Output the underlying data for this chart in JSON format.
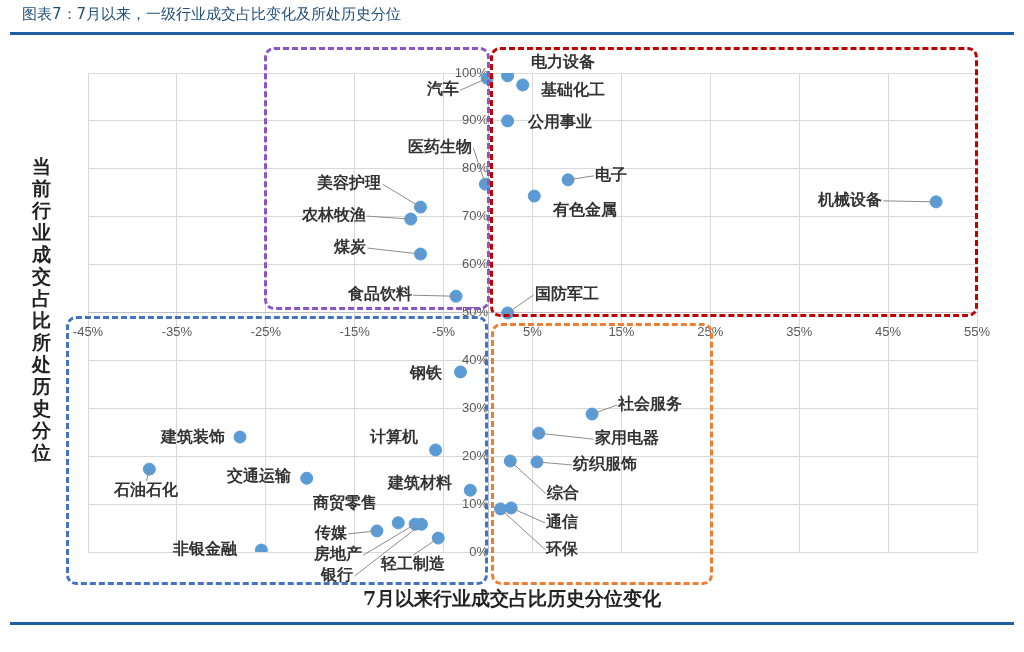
{
  "chart_data": {
    "type": "scatter",
    "title": "图表7：7月以来，一级行业成交占比变化及所处历史分位",
    "xlabel": "7月以来行业成交占比历史分位变化",
    "ylabel": "当前行业成交占比所处历史分位",
    "x": [
      -0.1,
      2.2,
      3.9,
      2.2,
      -0.3,
      9.0,
      5.2,
      50.4,
      -7.6,
      -8.7,
      -7.6,
      -3.6,
      2.2,
      -3.1,
      11.7,
      5.7,
      5.5,
      2.5,
      -27.9,
      -38.1,
      -20.4,
      -5.9,
      -2.0,
      -10.1,
      -12.5,
      -8.2,
      -7.5,
      -5.6,
      -25.5,
      2.6,
      1.4
    ],
    "values": [
      98.9,
      99.4,
      97.5,
      90.0,
      76.8,
      77.7,
      74.3,
      73.1,
      72.0,
      69.5,
      62.2,
      53.4,
      49.9,
      37.6,
      28.8,
      24.8,
      18.8,
      19.0,
      24.0,
      17.3,
      15.4,
      21.3,
      12.9,
      6.1,
      4.4,
      5.8,
      5.8,
      2.9,
      0.4,
      9.2,
      9.0
    ],
    "value_labels": [
      "汽车",
      "电力设备",
      "基础化工",
      "公用事业",
      "医药生物",
      "电子",
      "有色金属",
      "机械设备",
      "美容护理",
      "农林牧渔",
      "煤炭",
      "食品饮料",
      "国防军工",
      "钢铁",
      "社会服务",
      "家用电器",
      "纺织服饰",
      "综合",
      "建筑装饰",
      "石油石化",
      "交通运输",
      "计算机",
      "建筑材料",
      "商贸零售",
      "传媒",
      "房地产",
      "银行",
      "轻工制造",
      "非银金融",
      "通信",
      "环保"
    ],
    "color": "#5b9bd5",
    "marker": "circle",
    "grid": true,
    "xlim": [
      -45,
      55
    ],
    "xticks": [
      {
        "value": -45,
        "label": "-45%"
      },
      {
        "value": -35,
        "label": "-35%"
      },
      {
        "value": -25,
        "label": "-25%"
      },
      {
        "value": -15,
        "label": "-15%"
      },
      {
        "value": -5,
        "label": "-5%"
      },
      {
        "value": 5,
        "label": "5%"
      },
      {
        "value": 15,
        "label": "15%"
      },
      {
        "value": 25,
        "label": "25%"
      },
      {
        "value": 35,
        "label": "35%"
      },
      {
        "value": 45,
        "label": "45%"
      },
      {
        "value": 55,
        "label": "55%"
      }
    ],
    "ylim": [
      0,
      100
    ],
    "yticks": [
      {
        "value": 0,
        "label": "0%"
      },
      {
        "value": 10,
        "label": "10%"
      },
      {
        "value": 20,
        "label": "20%"
      },
      {
        "value": 30,
        "label": "30%"
      },
      {
        "value": 40,
        "label": "40%"
      },
      {
        "value": 50,
        "label": "50%"
      },
      {
        "value": 60,
        "label": "60%"
      },
      {
        "value": 70,
        "label": "70%"
      },
      {
        "value": 80,
        "label": "80%"
      },
      {
        "value": 90,
        "label": "90%"
      },
      {
        "value": 100,
        "label": "100%"
      }
    ]
  }
}
